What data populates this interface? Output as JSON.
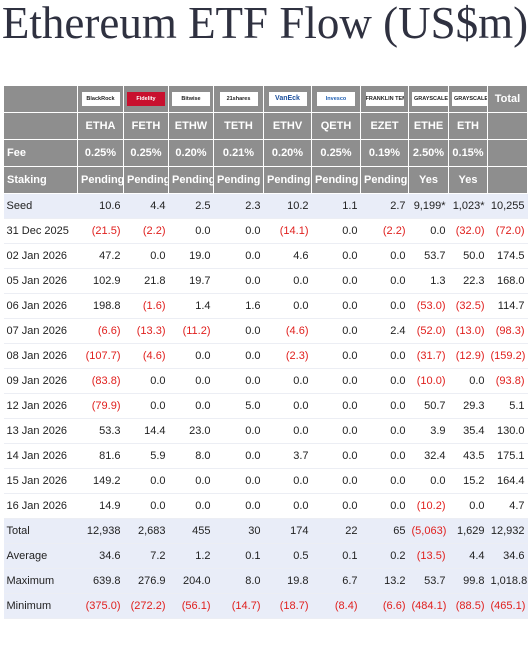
{
  "title": "Ethereum ETF Flow (US$m)",
  "table": {
    "brands": [
      "BlackRock",
      "Fidelity",
      "Bitwise",
      "21shares",
      "VanEck",
      "Invesco",
      "FRANKLIN TEMPLETON",
      "GRAYSCALE",
      "GRAYSCALE"
    ],
    "total_label": "Total",
    "tickers": [
      "ETHA",
      "FETH",
      "ETHW",
      "TETH",
      "ETHV",
      "QETH",
      "EZET",
      "ETHE",
      "ETH"
    ],
    "fee_row": [
      "Fee",
      "0.25%",
      "0.25%",
      "0.20%",
      "0.21%",
      "0.20%",
      "0.25%",
      "0.19%",
      "2.50%",
      "0.15%"
    ],
    "staking_row": [
      "Staking",
      "Pending",
      "Pending",
      "Pending",
      "Pending",
      "Pending",
      "Pending",
      "Pending",
      "Yes",
      "Yes"
    ],
    "seed_row": [
      "Seed",
      "10.6",
      "4.4",
      "2.5",
      "2.3",
      "10.2",
      "1.1",
      "2.7",
      "9,199*",
      "1,023*",
      "10,255"
    ],
    "rows": [
      [
        "31 Dec 2025",
        "(21.5)",
        "(2.2)",
        "0.0",
        "0.0",
        "(14.1)",
        "0.0",
        "(2.2)",
        "0.0",
        "(32.0)",
        "(72.0)"
      ],
      [
        "02 Jan 2026",
        "47.2",
        "0.0",
        "19.0",
        "0.0",
        "4.6",
        "0.0",
        "0.0",
        "53.7",
        "50.0",
        "174.5"
      ],
      [
        "05 Jan 2026",
        "102.9",
        "21.8",
        "19.7",
        "0.0",
        "0.0",
        "0.0",
        "0.0",
        "1.3",
        "22.3",
        "168.0"
      ],
      [
        "06 Jan 2026",
        "198.8",
        "(1.6)",
        "1.4",
        "1.6",
        "0.0",
        "0.0",
        "0.0",
        "(53.0)",
        "(32.5)",
        "114.7"
      ],
      [
        "07 Jan 2026",
        "(6.6)",
        "(13.3)",
        "(11.2)",
        "0.0",
        "(4.6)",
        "0.0",
        "2.4",
        "(52.0)",
        "(13.0)",
        "(98.3)"
      ],
      [
        "08 Jan 2026",
        "(107.7)",
        "(4.6)",
        "0.0",
        "0.0",
        "(2.3)",
        "0.0",
        "0.0",
        "(31.7)",
        "(12.9)",
        "(159.2)"
      ],
      [
        "09 Jan 2026",
        "(83.8)",
        "0.0",
        "0.0",
        "0.0",
        "0.0",
        "0.0",
        "0.0",
        "(10.0)",
        "0.0",
        "(93.8)"
      ],
      [
        "12 Jan 2026",
        "(79.9)",
        "0.0",
        "0.0",
        "5.0",
        "0.0",
        "0.0",
        "0.0",
        "50.7",
        "29.3",
        "5.1"
      ],
      [
        "13 Jan 2026",
        "53.3",
        "14.4",
        "23.0",
        "0.0",
        "0.0",
        "0.0",
        "0.0",
        "3.9",
        "35.4",
        "130.0"
      ],
      [
        "14 Jan 2026",
        "81.6",
        "5.9",
        "8.0",
        "0.0",
        "3.7",
        "0.0",
        "0.0",
        "32.4",
        "43.5",
        "175.1"
      ],
      [
        "15 Jan 2026",
        "149.2",
        "0.0",
        "0.0",
        "0.0",
        "0.0",
        "0.0",
        "0.0",
        "0.0",
        "15.2",
        "164.4"
      ],
      [
        "16 Jan 2026",
        "14.9",
        "0.0",
        "0.0",
        "0.0",
        "0.0",
        "0.0",
        "0.0",
        "(10.2)",
        "0.0",
        "4.7"
      ]
    ],
    "summary_rows": [
      [
        "Total",
        "12,938",
        "2,683",
        "455",
        "30",
        "174",
        "22",
        "65",
        "(5,063)",
        "1,629",
        "12,932"
      ],
      [
        "Average",
        "34.6",
        "7.2",
        "1.2",
        "0.1",
        "0.5",
        "0.1",
        "0.2",
        "(13.5)",
        "4.4",
        "34.6"
      ],
      [
        "Maximum",
        "639.8",
        "276.9",
        "204.0",
        "8.0",
        "19.8",
        "6.7",
        "13.2",
        "53.7",
        "99.8",
        "1,018.8"
      ],
      [
        "Minimum",
        "(375.0)",
        "(272.2)",
        "(56.1)",
        "(14.7)",
        "(18.7)",
        "(8.4)",
        "(6.6)",
        "(484.1)",
        "(88.5)",
        "(465.1)"
      ]
    ]
  }
}
